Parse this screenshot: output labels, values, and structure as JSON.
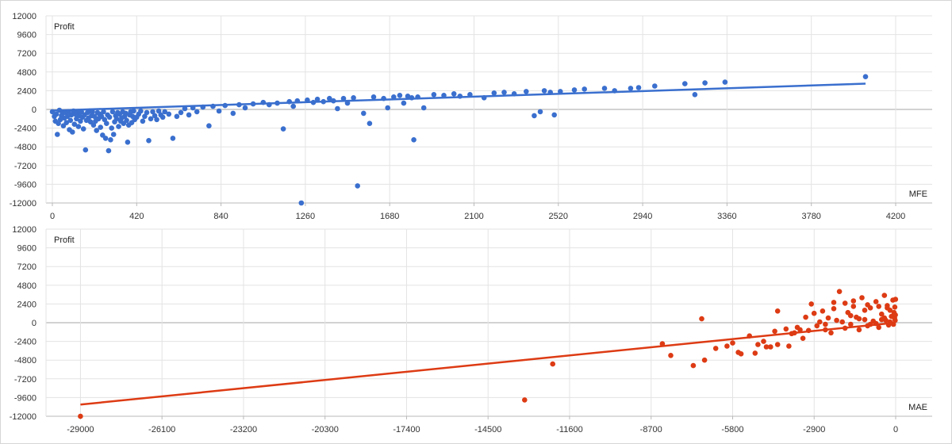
{
  "chart_data": [
    {
      "type": "scatter",
      "title": "",
      "ylabel": "Profit",
      "xlabel": "MFE",
      "xlim": [
        0,
        4200
      ],
      "ylim": [
        -12000,
        12000
      ],
      "xticks": [
        0,
        420,
        840,
        1260,
        1680,
        2100,
        2520,
        2940,
        3360,
        3780,
        4200
      ],
      "yticks": [
        12000,
        9600,
        7200,
        4800,
        2400,
        0,
        -2400,
        -4800,
        -7200,
        -9600,
        -12000
      ],
      "grid": true,
      "color": "#3a6fce",
      "trendline": [
        [
          0,
          -150
        ],
        [
          4050,
          3300
        ]
      ],
      "series": [
        {
          "points": [
            [
              0,
              -300
            ],
            [
              10,
              -900
            ],
            [
              15,
              -1500
            ],
            [
              20,
              -600
            ],
            [
              25,
              -3200
            ],
            [
              30,
              -1800
            ],
            [
              35,
              -100
            ],
            [
              40,
              -1300
            ],
            [
              45,
              -800
            ],
            [
              50,
              -500
            ],
            [
              55,
              -2100
            ],
            [
              60,
              -1100
            ],
            [
              65,
              -400
            ],
            [
              70,
              -1700
            ],
            [
              75,
              -900
            ],
            [
              80,
              -300
            ],
            [
              85,
              -2600
            ],
            [
              90,
              -1400
            ],
            [
              95,
              -700
            ],
            [
              100,
              -2900
            ],
            [
              105,
              -200
            ],
            [
              110,
              -1900
            ],
            [
              115,
              -600
            ],
            [
              120,
              -1200
            ],
            [
              125,
              -400
            ],
            [
              130,
              -2200
            ],
            [
              135,
              -800
            ],
            [
              140,
              -1500
            ],
            [
              145,
              -300
            ],
            [
              150,
              -1000
            ],
            [
              155,
              -2500
            ],
            [
              160,
              -700
            ],
            [
              165,
              -5200
            ],
            [
              170,
              -1400
            ],
            [
              175,
              -400
            ],
            [
              180,
              -1100
            ],
            [
              185,
              -200
            ],
            [
              190,
              -1600
            ],
            [
              195,
              -800
            ],
            [
              200,
              -300
            ],
            [
              205,
              -2000
            ],
            [
              210,
              -900
            ],
            [
              215,
              -1500
            ],
            [
              220,
              -2700
            ],
            [
              225,
              -400
            ],
            [
              230,
              -1200
            ],
            [
              235,
              -600
            ],
            [
              240,
              -2300
            ],
            [
              245,
              -900
            ],
            [
              250,
              -3300
            ],
            [
              255,
              -300
            ],
            [
              260,
              -1300
            ],
            [
              265,
              -3700
            ],
            [
              270,
              -1800
            ],
            [
              275,
              -700
            ],
            [
              280,
              -5300
            ],
            [
              285,
              -1000
            ],
            [
              290,
              -3900
            ],
            [
              295,
              -2400
            ],
            [
              300,
              -300
            ],
            [
              305,
              -3200
            ],
            [
              310,
              -1600
            ],
            [
              315,
              -800
            ],
            [
              320,
              -1200
            ],
            [
              325,
              -400
            ],
            [
              330,
              -2200
            ],
            [
              335,
              -600
            ],
            [
              340,
              -1500
            ],
            [
              345,
              -1100
            ],
            [
              350,
              -300
            ],
            [
              355,
              -1800
            ],
            [
              360,
              -900
            ],
            [
              365,
              -500
            ],
            [
              370,
              -1400
            ],
            [
              375,
              -4200
            ],
            [
              380,
              -2000
            ],
            [
              385,
              -700
            ],
            [
              390,
              -300
            ],
            [
              395,
              -1700
            ],
            [
              400,
              -900
            ],
            [
              405,
              -200
            ],
            [
              410,
              -1300
            ],
            [
              420,
              -1000
            ],
            [
              430,
              -600
            ],
            [
              440,
              -200
            ],
            [
              450,
              -1500
            ],
            [
              460,
              -900
            ],
            [
              470,
              -400
            ],
            [
              480,
              -4000
            ],
            [
              490,
              -1200
            ],
            [
              500,
              -300
            ],
            [
              510,
              -800
            ],
            [
              520,
              -1300
            ],
            [
              530,
              -200
            ],
            [
              540,
              -700
            ],
            [
              550,
              -1000
            ],
            [
              560,
              -300
            ],
            [
              580,
              -600
            ],
            [
              600,
              -3700
            ],
            [
              620,
              -900
            ],
            [
              640,
              -400
            ],
            [
              660,
              100
            ],
            [
              680,
              -700
            ],
            [
              700,
              200
            ],
            [
              720,
              -300
            ],
            [
              750,
              300
            ],
            [
              780,
              -2100
            ],
            [
              800,
              400
            ],
            [
              830,
              -200
            ],
            [
              860,
              500
            ],
            [
              900,
              -500
            ],
            [
              930,
              600
            ],
            [
              960,
              200
            ],
            [
              1000,
              700
            ],
            [
              1050,
              900
            ],
            [
              1080,
              600
            ],
            [
              1120,
              800
            ],
            [
              1150,
              -2500
            ],
            [
              1180,
              1000
            ],
            [
              1200,
              400
            ],
            [
              1220,
              1100
            ],
            [
              1240,
              -12000
            ],
            [
              1270,
              1200
            ],
            [
              1300,
              900
            ],
            [
              1320,
              1300
            ],
            [
              1350,
              1000
            ],
            [
              1380,
              1400
            ],
            [
              1400,
              1100
            ],
            [
              1420,
              100
            ],
            [
              1450,
              1400
            ],
            [
              1470,
              800
            ],
            [
              1500,
              1500
            ],
            [
              1520,
              -9800
            ],
            [
              1550,
              -500
            ],
            [
              1580,
              -1800
            ],
            [
              1600,
              1600
            ],
            [
              1650,
              1400
            ],
            [
              1670,
              200
            ],
            [
              1700,
              1600
            ],
            [
              1730,
              1800
            ],
            [
              1750,
              800
            ],
            [
              1770,
              1700
            ],
            [
              1790,
              1500
            ],
            [
              1800,
              -3900
            ],
            [
              1820,
              1600
            ],
            [
              1850,
              200
            ],
            [
              1900,
              1900
            ],
            [
              1950,
              1800
            ],
            [
              2000,
              2000
            ],
            [
              2030,
              1700
            ],
            [
              2080,
              1900
            ],
            [
              2150,
              1500
            ],
            [
              2200,
              2100
            ],
            [
              2250,
              2200
            ],
            [
              2300,
              2000
            ],
            [
              2360,
              2300
            ],
            [
              2400,
              -800
            ],
            [
              2430,
              -300
            ],
            [
              2450,
              2400
            ],
            [
              2480,
              2200
            ],
            [
              2500,
              -700
            ],
            [
              2530,
              2300
            ],
            [
              2600,
              2500
            ],
            [
              2650,
              2600
            ],
            [
              2750,
              2700
            ],
            [
              2800,
              2400
            ],
            [
              2880,
              2700
            ],
            [
              2920,
              2800
            ],
            [
              3000,
              3000
            ],
            [
              3150,
              3300
            ],
            [
              3200,
              1900
            ],
            [
              3250,
              3400
            ],
            [
              3350,
              3500
            ],
            [
              4050,
              4200
            ]
          ]
        }
      ]
    },
    {
      "type": "scatter",
      "title": "",
      "ylabel": "Profit",
      "xlabel": "MAE",
      "xlim": [
        -30000,
        0
      ],
      "ylim": [
        -12000,
        12000
      ],
      "xticks": [
        -29000,
        -26100,
        -23200,
        -20300,
        -17400,
        -14500,
        -11600,
        -8700,
        -5800,
        -2900,
        0
      ],
      "yticks": [
        12000,
        9600,
        7200,
        4800,
        2400,
        0,
        -2400,
        -4800,
        -7200,
        -9600,
        -12000
      ],
      "grid": true,
      "color": "#dd3b14",
      "trendline": [
        [
          -29000,
          -10500
        ],
        [
          0,
          0
        ]
      ],
      "series": [
        {
          "points": [
            [
              -29000,
              -12000
            ],
            [
              -13200,
              -9900
            ],
            [
              -12200,
              -5300
            ],
            [
              -8300,
              -2700
            ],
            [
              -8000,
              -4200
            ],
            [
              -7200,
              -5500
            ],
            [
              -6800,
              -4800
            ],
            [
              -6900,
              500
            ],
            [
              -6400,
              -3300
            ],
            [
              -6000,
              -3000
            ],
            [
              -5800,
              -2600
            ],
            [
              -5600,
              -3800
            ],
            [
              -5500,
              -4000
            ],
            [
              -5200,
              -1700
            ],
            [
              -5000,
              -3900
            ],
            [
              -4900,
              -2800
            ],
            [
              -4700,
              -2400
            ],
            [
              -4600,
              -3100
            ],
            [
              -4450,
              -3100
            ],
            [
              -4300,
              -1100
            ],
            [
              -4200,
              -2800
            ],
            [
              -4200,
              1500
            ],
            [
              -3900,
              -800
            ],
            [
              -3800,
              -3000
            ],
            [
              -3700,
              -1400
            ],
            [
              -3600,
              -1300
            ],
            [
              -3500,
              -600
            ],
            [
              -3400,
              -900
            ],
            [
              -3300,
              -2000
            ],
            [
              -3200,
              700
            ],
            [
              -3100,
              -1000
            ],
            [
              -3000,
              2400
            ],
            [
              -2900,
              1200
            ],
            [
              -2800,
              -400
            ],
            [
              -2700,
              100
            ],
            [
              -2600,
              1500
            ],
            [
              -2500,
              -900
            ],
            [
              -2400,
              600
            ],
            [
              -2300,
              -1300
            ],
            [
              -2200,
              1800
            ],
            [
              -2100,
              300
            ],
            [
              -2000,
              4000
            ],
            [
              -1900,
              100
            ],
            [
              -1800,
              -700
            ],
            [
              -1700,
              1300
            ],
            [
              -1600,
              -200
            ],
            [
              -1500,
              2100
            ],
            [
              -1400,
              700
            ],
            [
              -1300,
              -900
            ],
            [
              -1200,
              3200
            ],
            [
              -1100,
              400
            ],
            [
              -1000,
              -400
            ],
            [
              -900,
              1900
            ],
            [
              -800,
              200
            ],
            [
              -700,
              2700
            ],
            [
              -600,
              -600
            ],
            [
              -500,
              1100
            ],
            [
              -400,
              3500
            ],
            [
              -350,
              300
            ],
            [
              -300,
              2200
            ],
            [
              -250,
              -300
            ],
            [
              -200,
              1600
            ],
            [
              -150,
              800
            ],
            [
              -100,
              2900
            ],
            [
              -80,
              -200
            ],
            [
              -60,
              1300
            ],
            [
              -40,
              600
            ],
            [
              -30,
              2000
            ],
            [
              -20,
              300
            ],
            [
              -10,
              1000
            ],
            [
              -5,
              3000
            ],
            [
              -1500,
              2800
            ],
            [
              -2200,
              2600
            ],
            [
              -1800,
              2500
            ],
            [
              -1000,
              2300
            ],
            [
              -600,
              2100
            ],
            [
              -300,
              1900
            ],
            [
              -2500,
              -200
            ],
            [
              -1300,
              500
            ],
            [
              -700,
              -100
            ],
            [
              -1600,
              900
            ],
            [
              -900,
              -200
            ],
            [
              -400,
              600
            ],
            [
              -1100,
              1600
            ],
            [
              -500,
              400
            ],
            [
              -200,
              100
            ]
          ]
        }
      ]
    }
  ]
}
